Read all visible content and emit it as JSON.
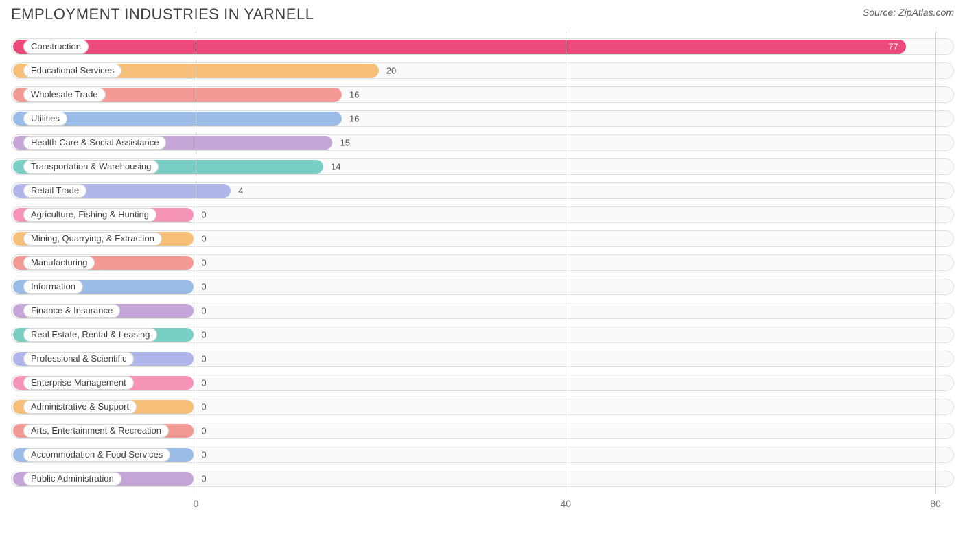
{
  "title": "EMPLOYMENT INDUSTRIES IN YARNELL",
  "source_label": "Source: ZipAtlas.com",
  "chart": {
    "type": "bar-horizontal",
    "x_min": -20,
    "x_max": 82,
    "ticks": [
      {
        "value": 0,
        "label": "0"
      },
      {
        "value": 40,
        "label": "40"
      },
      {
        "value": 80,
        "label": "80"
      }
    ],
    "grid_color": "#d0d0d0",
    "track_bg": "#fafafa",
    "track_border": "#e0e0e0",
    "text_color": "#404040",
    "value_color": "#505050",
    "label_min_width_value": 0,
    "rows": [
      {
        "label": "Construction",
        "value": 77,
        "color": "#ec4a7a",
        "value_inside": true,
        "value_text_color": "#ffffff"
      },
      {
        "label": "Educational Services",
        "value": 20,
        "color": "#f6c07a",
        "value_inside": false
      },
      {
        "label": "Wholesale Trade",
        "value": 16,
        "color": "#f29a93",
        "value_inside": false
      },
      {
        "label": "Utilities",
        "value": 16,
        "color": "#9cbce8",
        "value_inside": false
      },
      {
        "label": "Health Care & Social Assistance",
        "value": 15,
        "color": "#c6a6d8",
        "value_inside": false
      },
      {
        "label": "Transportation & Warehousing",
        "value": 14,
        "color": "#79cfc6",
        "value_inside": false
      },
      {
        "label": "Retail Trade",
        "value": 4,
        "color": "#b1b6ea",
        "value_inside": false
      },
      {
        "label": "Agriculture, Fishing & Hunting",
        "value": 0,
        "color": "#f594b7",
        "value_inside": false
      },
      {
        "label": "Mining, Quarrying, & Extraction",
        "value": 0,
        "color": "#f6c07a",
        "value_inside": false
      },
      {
        "label": "Manufacturing",
        "value": 0,
        "color": "#f29a93",
        "value_inside": false
      },
      {
        "label": "Information",
        "value": 0,
        "color": "#9cbce8",
        "value_inside": false
      },
      {
        "label": "Finance & Insurance",
        "value": 0,
        "color": "#c6a6d8",
        "value_inside": false
      },
      {
        "label": "Real Estate, Rental & Leasing",
        "value": 0,
        "color": "#79cfc6",
        "value_inside": false
      },
      {
        "label": "Professional & Scientific",
        "value": 0,
        "color": "#b1b6ea",
        "value_inside": false
      },
      {
        "label": "Enterprise Management",
        "value": 0,
        "color": "#f594b7",
        "value_inside": false
      },
      {
        "label": "Administrative & Support",
        "value": 0,
        "color": "#f6c07a",
        "value_inside": false
      },
      {
        "label": "Arts, Entertainment & Recreation",
        "value": 0,
        "color": "#f29a93",
        "value_inside": false
      },
      {
        "label": "Accommodation & Food Services",
        "value": 0,
        "color": "#9cbce8",
        "value_inside": false
      },
      {
        "label": "Public Administration",
        "value": 0,
        "color": "#c6a6d8",
        "value_inside": false
      }
    ]
  }
}
